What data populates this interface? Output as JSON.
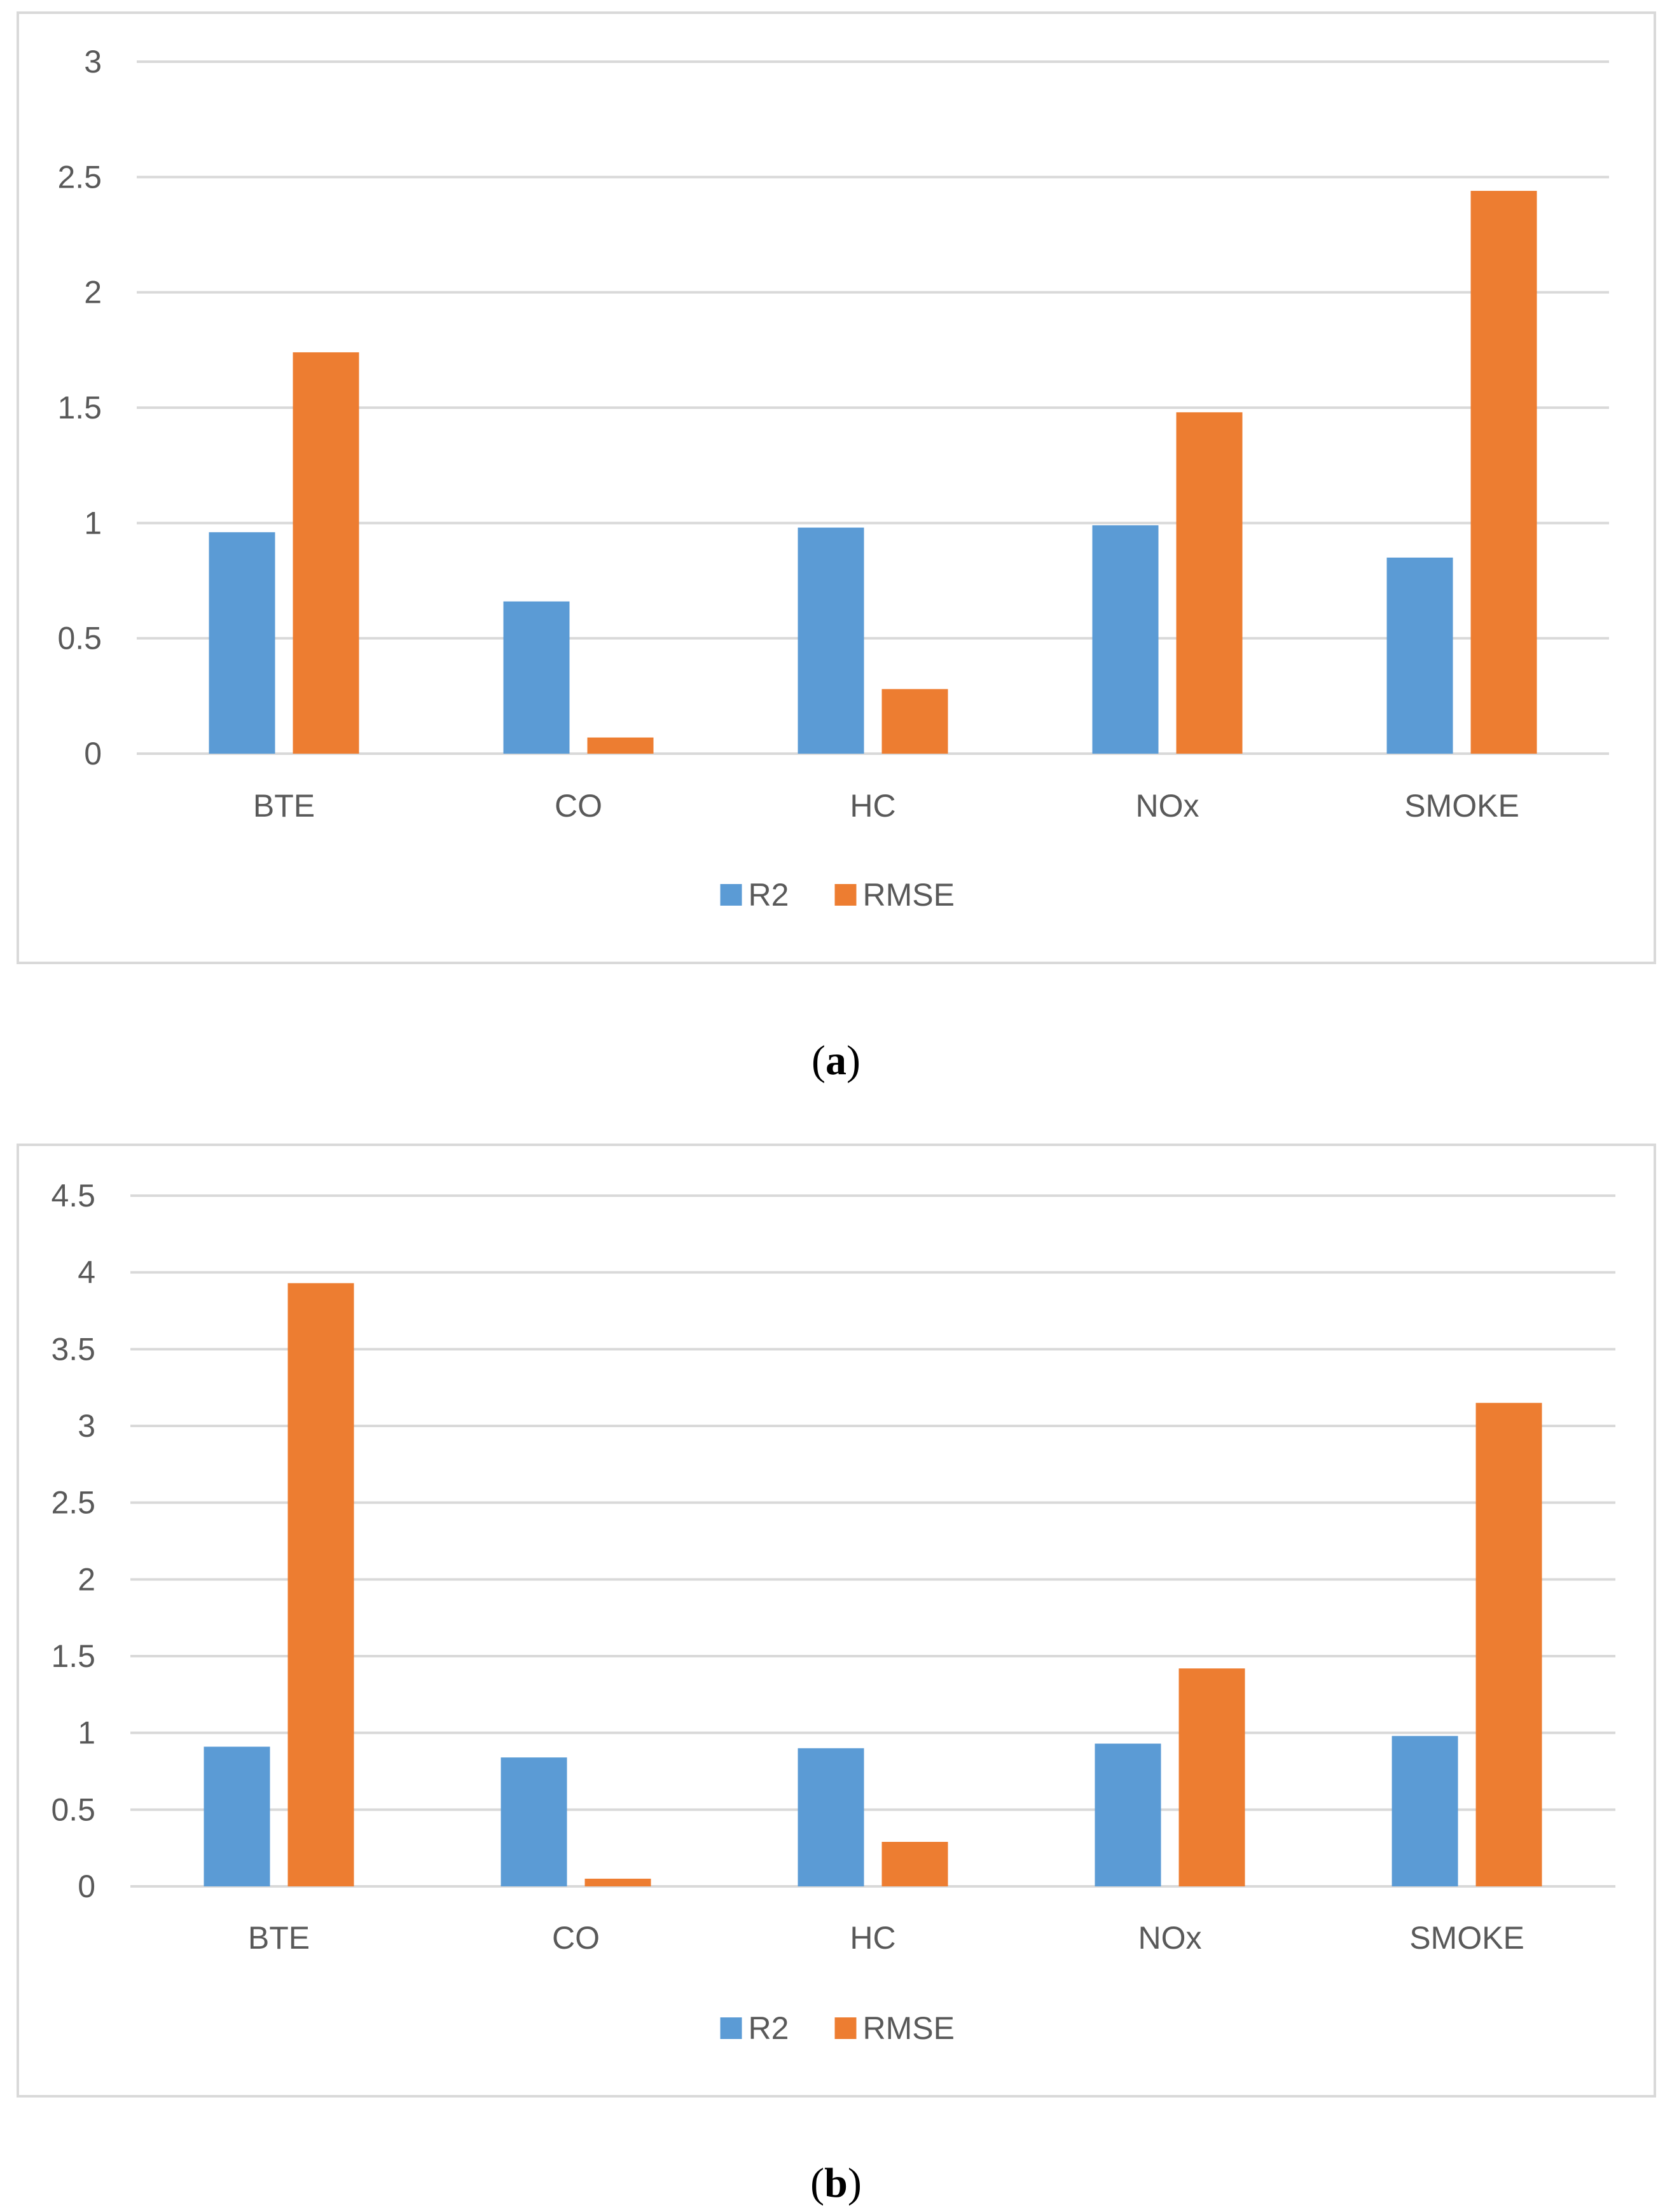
{
  "colors": {
    "r2": "#5b9bd5",
    "rmse": "#ed7d31",
    "grid": "#d9d9d9",
    "text": "#595959"
  },
  "chart_data": [
    {
      "type": "bar",
      "panel": "a",
      "categories": [
        "BTE",
        "CO",
        "HC",
        "NOx",
        "SMOKE"
      ],
      "series": [
        {
          "name": "R2",
          "values": [
            0.96,
            0.66,
            0.98,
            0.99,
            0.85
          ]
        },
        {
          "name": "RMSE",
          "values": [
            1.74,
            0.07,
            0.28,
            1.48,
            2.44
          ]
        }
      ],
      "yticks": [
        "0",
        "0.5",
        "1",
        "1.5",
        "2",
        "2.5",
        "3"
      ],
      "ylim": [
        0,
        3
      ],
      "grid": true,
      "legend": "bottom-center",
      "title": "",
      "xlabel": "",
      "ylabel": ""
    },
    {
      "type": "bar",
      "panel": "b",
      "categories": [
        "BTE",
        "CO",
        "HC",
        "NOx",
        "SMOKE"
      ],
      "series": [
        {
          "name": "R2",
          "values": [
            0.91,
            0.84,
            0.9,
            0.93,
            0.98
          ]
        },
        {
          "name": "RMSE",
          "values": [
            3.93,
            0.05,
            0.29,
            1.42,
            3.15
          ]
        }
      ],
      "yticks": [
        "0",
        "0.5",
        "1",
        "1.5",
        "2",
        "2.5",
        "3",
        "3.5",
        "4",
        "4.5"
      ],
      "ylim": [
        0,
        4.5
      ],
      "grid": true,
      "legend": "bottom-center",
      "title": "",
      "xlabel": "",
      "ylabel": ""
    }
  ],
  "captions": {
    "a": {
      "open": "(",
      "letter": "a",
      "close": ")"
    },
    "b": {
      "open": "(",
      "letter": "b",
      "close": ")"
    }
  }
}
